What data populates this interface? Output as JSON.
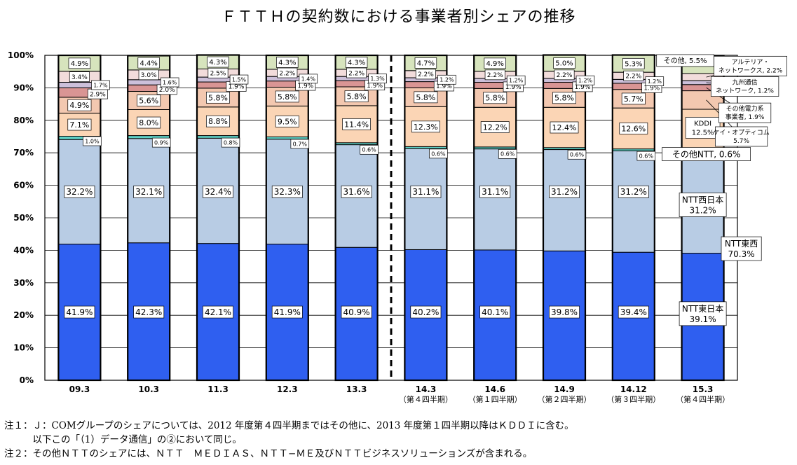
{
  "chart_data": {
    "type": "bar",
    "stacked": true,
    "title": "ＦＴＴＨの契約数における事業者別シェアの推移",
    "ylim": [
      0,
      100
    ],
    "yticks": [
      "0%",
      "10%",
      "20%",
      "30%",
      "40%",
      "50%",
      "60%",
      "70%",
      "80%",
      "90%",
      "100%"
    ],
    "categories": [
      {
        "label": "09.3",
        "sub": ""
      },
      {
        "label": "10.3",
        "sub": ""
      },
      {
        "label": "11.3",
        "sub": ""
      },
      {
        "label": "12.3",
        "sub": ""
      },
      {
        "label": "13.3",
        "sub": ""
      },
      {
        "label": "14.3",
        "sub": "（第４四半期）"
      },
      {
        "label": "14.6",
        "sub": "（第１四半期）"
      },
      {
        "label": "14.9",
        "sub": "（第２四半期）"
      },
      {
        "label": "14.12",
        "sub": "（第３四半期）"
      },
      {
        "label": "15.3",
        "sub": "（第４四半期）"
      }
    ],
    "divider_after_index": 4,
    "series": [
      {
        "key": "ntt_east",
        "color": "#2f5ff0",
        "values": [
          41.9,
          42.3,
          42.1,
          41.9,
          40.9,
          40.2,
          40.1,
          39.8,
          39.4,
          39.1
        ],
        "labels": [
          "41.9%",
          "42.3%",
          "42.1%",
          "41.9%",
          "40.9%",
          "40.2%",
          "40.1%",
          "39.8%",
          "39.4%",
          null
        ]
      },
      {
        "key": "ntt_west",
        "color": "#b8cce4",
        "values": [
          32.2,
          32.1,
          32.4,
          32.3,
          31.6,
          31.1,
          31.1,
          31.2,
          31.2,
          31.2
        ],
        "labels": [
          "32.2%",
          "32.1%",
          "32.4%",
          "32.3%",
          "31.6%",
          "31.1%",
          "31.1%",
          "31.2%",
          "31.2%",
          null
        ]
      },
      {
        "key": "other_ntt",
        "color": "#5fd3c8",
        "values": [
          1.0,
          0.9,
          0.8,
          0.7,
          0.6,
          0.6,
          0.6,
          0.6,
          0.6,
          0.6
        ],
        "labels": [
          "1.0%",
          "0.9%",
          "0.8%",
          "0.7%",
          "0.6%",
          "0.6%",
          "0.6%",
          "0.6%",
          "0.6%",
          null
        ]
      },
      {
        "key": "kddi",
        "color": "#fbd5b5",
        "values": [
          7.1,
          8.0,
          8.8,
          9.5,
          11.4,
          12.3,
          12.2,
          12.4,
          12.6,
          12.5
        ],
        "labels": [
          "7.1%",
          "8.0%",
          "8.8%",
          "9.5%",
          "11.4%",
          "12.3%",
          "12.2%",
          "12.4%",
          "12.6%",
          null
        ]
      },
      {
        "key": "k_opticom",
        "color": "#f3c8b0",
        "values": [
          4.9,
          5.6,
          5.8,
          5.8,
          5.8,
          5.8,
          5.8,
          5.8,
          5.7,
          5.7
        ],
        "labels": [
          "4.9%",
          "5.6%",
          "5.8%",
          "5.8%",
          "5.8%",
          "5.8%",
          "5.8%",
          "5.8%",
          "5.7%",
          null
        ]
      },
      {
        "key": "other_power",
        "color": "#d99594",
        "values": [
          2.9,
          2.0,
          1.9,
          1.9,
          1.9,
          1.9,
          1.9,
          1.9,
          1.9,
          1.9
        ],
        "labels": [
          "2.9%",
          "2.0%",
          "1.9%",
          "1.9%",
          "1.9%",
          "1.9%",
          "1.9%",
          "1.9%",
          "1.9%",
          null
        ]
      },
      {
        "key": "kyushu",
        "color": "#ccc0da",
        "values": [
          1.7,
          1.6,
          1.5,
          1.4,
          1.3,
          1.2,
          1.2,
          1.2,
          1.2,
          1.2
        ],
        "labels": [
          "1.7%",
          "1.6%",
          "1.5%",
          "1.4%",
          "1.3%",
          "1.2%",
          "1.2%",
          "1.2%",
          "1.2%",
          null
        ]
      },
      {
        "key": "arteria",
        "color": "#f2dcdb",
        "values": [
          3.4,
          3.0,
          2.5,
          2.2,
          2.2,
          2.2,
          2.2,
          2.2,
          2.2,
          2.2
        ],
        "labels": [
          "3.4%",
          "3.0%",
          "2.5%",
          "2.2%",
          "2.2%",
          "2.2%",
          "2.2%",
          "2.2%",
          "2.2%",
          null
        ]
      },
      {
        "key": "other",
        "color": "#d7e4bd",
        "values": [
          4.9,
          4.4,
          4.3,
          4.3,
          4.3,
          4.7,
          4.9,
          5.0,
          5.3,
          5.5
        ],
        "labels": [
          "4.9%",
          "4.4%",
          "4.3%",
          "4.3%",
          "4.3%",
          "4.7%",
          "4.9%",
          "5.0%",
          "5.3%",
          null
        ]
      }
    ],
    "last_bar_annotations": [
      {
        "series": "ntt_east",
        "lines": [
          "NTT東日本",
          "39.1%"
        ]
      },
      {
        "series": "ntt_west",
        "lines": [
          "NTT西日本",
          "31.2%"
        ]
      },
      {
        "group": "ntt_total",
        "lines": [
          "NTT東西",
          "70.3%"
        ]
      },
      {
        "series": "other_ntt",
        "lines": [
          "その他NTT, 0.6%"
        ]
      },
      {
        "series": "kddi",
        "lines": [
          "KDDI",
          "12.5%"
        ]
      },
      {
        "series": "k_opticom",
        "lines": [
          "ケイ・オプティコム",
          "5.7%"
        ]
      },
      {
        "series": "other_power",
        "lines": [
          "その他電力系",
          "事業者, 1.9%"
        ]
      },
      {
        "series": "kyushu",
        "lines": [
          "九州通信",
          "ネットワーク, 1.2%"
        ]
      },
      {
        "series": "arteria",
        "lines": [
          "アルテリア・",
          "ネットワークス, 2.2%"
        ]
      },
      {
        "series": "other",
        "lines": [
          "その他, 5.5%"
        ]
      }
    ]
  },
  "notes": [
    "注１：Ｊ：COMグループのシェアについては、2012 年度第４四半期まではその他に、2013 年度第１四半期以降はＫＤＤＩに含む。",
    "　　　以下この「（1）データ通信」の②において同じ。",
    "注２：その他ＮＴＴのシェアには、ＮＴＴ　ＭＥＤＩＡＳ、ＮＴＴ−ＭＥ及びＮＴＴビジネスソリューションズが含まれる。"
  ]
}
